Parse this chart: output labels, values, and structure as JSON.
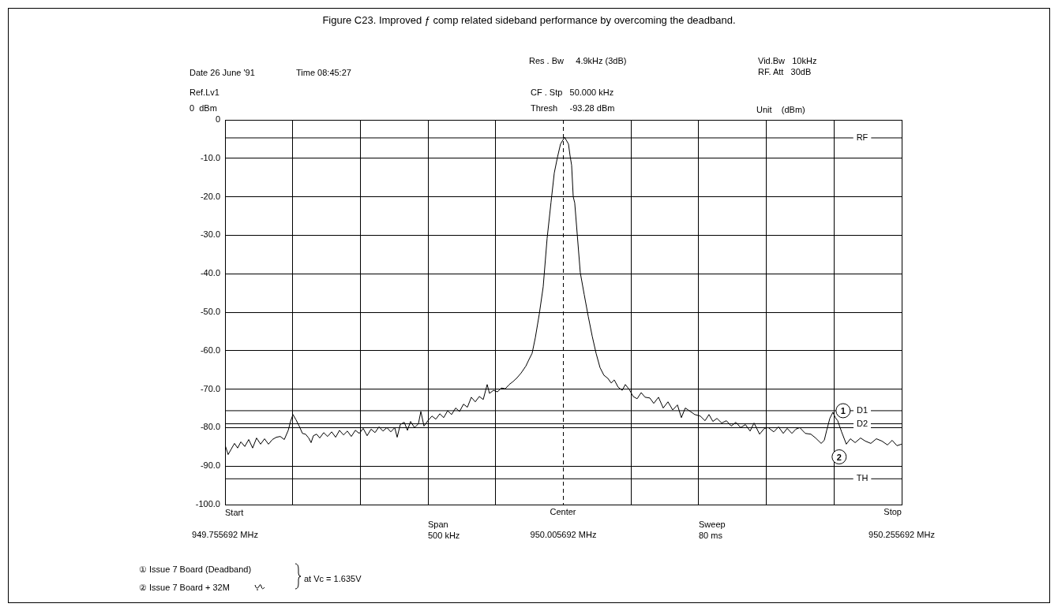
{
  "chart_data": {
    "type": "line",
    "title": "Figure C23. Improved ƒ comp related sideband performance by overcoming the deadband.",
    "annotations": [
      "Date 26 June '91",
      "Time 08:45:27",
      "Res . Bw     4.9kHz (3dB)",
      "Vid.Bw   10kHz",
      "RF. Att   30dB",
      "Ref.Lv1",
      "0  dBm",
      "CF . Stp   50.000 kHz",
      "Thresh     -93.28 dBm",
      "Unit    (dBm)",
      "Span\n500 kHz",
      "Sweep\n80 ms",
      "Start",
      "Center",
      "Stop",
      "① Issue 7 Board (Deadband)",
      "② Issue 7 Board + 32M",
      "at Vc = 1.635V",
      {
        "text": "1",
        "x": 950.2124,
        "y": -75.6
      },
      {
        "text": "2",
        "x": 950.2095,
        "y": -87.6
      }
    ],
    "x": [
      949.7557,
      949.758,
      949.7604,
      949.7627,
      949.765,
      949.7674,
      949.7703,
      949.7732,
      949.7761,
      949.779,
      949.782,
      949.7849,
      949.7878,
      949.7907,
      949.7936,
      949.7965,
      949.7995,
      949.8024,
      949.8041,
      949.8059,
      949.8082,
      949.8105,
      949.8129,
      949.8152,
      949.8175,
      949.8193,
      949.821,
      949.8234,
      949.8257,
      949.8286,
      949.8315,
      949.8345,
      949.8374,
      949.8403,
      949.8432,
      949.8461,
      949.849,
      949.852,
      949.8549,
      949.8578,
      949.8607,
      949.8636,
      949.8665,
      949.8695,
      949.8724,
      949.8753,
      949.8782,
      949.8811,
      949.8829,
      949.8852,
      949.8881,
      949.8905,
      949.8928,
      949.8957,
      949.8986,
      949.9004,
      949.9027,
      949.9056,
      949.9086,
      949.9115,
      949.9144,
      949.9173,
      949.9202,
      949.9231,
      949.9261,
      949.929,
      949.9319,
      949.9348,
      949.9377,
      949.9406,
      949.9436,
      949.9465,
      949.9494,
      949.9511,
      949.9541,
      949.957,
      949.9599,
      949.9628,
      949.9657,
      949.9686,
      949.9716,
      949.9745,
      949.978,
      949.9803,
      949.9826,
      949.985,
      949.9879,
      949.9908,
      949.9937,
      949.9966,
      949.999,
      950.0013,
      950.0036,
      950.0066,
      950.0095,
      950.0106,
      950.0118,
      950.013,
      950.0141,
      950.0159,
      950.0182,
      950.0211,
      950.0241,
      950.027,
      950.0299,
      950.0328,
      950.0357,
      950.0386,
      950.041,
      950.0433,
      950.0462,
      950.0492,
      950.0515,
      950.0544,
      950.0573,
      950.0602,
      950.0632,
      950.0661,
      950.0696,
      950.0725,
      950.076,
      950.0795,
      950.083,
      950.0865,
      950.09,
      950.0929,
      950.0958,
      950.0987,
      950.1028,
      950.1069,
      950.1104,
      950.1133,
      950.1162,
      950.1192,
      950.1227,
      950.1262,
      950.1297,
      950.1332,
      950.1367,
      950.1402,
      950.1437,
      950.1466,
      950.1507,
      950.1542,
      950.1571,
      950.1612,
      950.1647,
      950.1682,
      950.1711,
      950.1746,
      950.1775,
      950.1804,
      950.1845,
      950.1886,
      950.1921,
      950.1962,
      950.1985,
      950.2003,
      950.2026,
      950.2049,
      950.2067,
      950.2084,
      950.2113,
      950.2148,
      950.2178,
      950.2213,
      950.2253,
      950.2288,
      950.2329,
      950.237,
      950.2411,
      950.2452,
      950.2487,
      950.2522,
      950.2556
    ],
    "series": [
      {
        "color": "#000000",
        "values": [
          -84.5,
          -87.0,
          -85.5,
          -84.1,
          -85.3,
          -83.7,
          -84.9,
          -83.1,
          -85.3,
          -82.7,
          -84.3,
          -82.9,
          -84.3,
          -83.1,
          -82.5,
          -82.3,
          -83.1,
          -80.7,
          -78.4,
          -76.6,
          -78.0,
          -79.6,
          -81.5,
          -81.7,
          -82.7,
          -83.9,
          -82.1,
          -81.7,
          -82.7,
          -81.3,
          -82.3,
          -81.1,
          -82.5,
          -80.7,
          -81.9,
          -80.9,
          -82.3,
          -80.7,
          -81.5,
          -80.2,
          -82.1,
          -80.4,
          -81.3,
          -79.8,
          -80.9,
          -80.0,
          -81.1,
          -80.0,
          -82.5,
          -79.2,
          -78.6,
          -80.7,
          -78.4,
          -80.0,
          -79.0,
          -75.8,
          -79.6,
          -78.2,
          -77.0,
          -77.8,
          -76.4,
          -77.4,
          -75.6,
          -76.6,
          -74.9,
          -75.8,
          -73.9,
          -74.7,
          -72.1,
          -73.3,
          -71.9,
          -72.7,
          -68.8,
          -71.1,
          -70.3,
          -70.7,
          -69.7,
          -69.9,
          -68.8,
          -68.0,
          -67.0,
          -65.8,
          -64.0,
          -62.3,
          -60.7,
          -56.6,
          -50.5,
          -43.4,
          -30.8,
          -21.4,
          -13.8,
          -9.8,
          -6.3,
          -4.5,
          -6.3,
          -9.2,
          -11.8,
          -20.0,
          -21.6,
          -29.5,
          -39.7,
          -45.4,
          -51.1,
          -56.2,
          -60.7,
          -64.4,
          -66.4,
          -67.2,
          -68.4,
          -67.6,
          -69.5,
          -70.3,
          -68.8,
          -70.1,
          -71.9,
          -72.5,
          -70.9,
          -72.1,
          -72.3,
          -73.7,
          -72.1,
          -74.9,
          -73.3,
          -75.4,
          -74.1,
          -77.4,
          -74.9,
          -75.6,
          -76.6,
          -77.0,
          -78.2,
          -76.6,
          -78.4,
          -77.6,
          -78.8,
          -78.2,
          -79.6,
          -78.6,
          -80.0,
          -79.2,
          -80.9,
          -78.8,
          -81.7,
          -80.2,
          -80.0,
          -81.1,
          -79.8,
          -81.5,
          -80.2,
          -81.5,
          -80.4,
          -80.0,
          -81.5,
          -81.7,
          -82.7,
          -84.1,
          -83.3,
          -80.7,
          -77.6,
          -76.0,
          -77.4,
          -78.2,
          -81.1,
          -84.3,
          -82.9,
          -83.9,
          -82.7,
          -83.5,
          -84.1,
          -82.9,
          -83.5,
          -84.5,
          -83.3,
          -84.7,
          -84.3
        ]
      }
    ],
    "xlim": [
      949.755692,
      950.255692
    ],
    "xticks": [
      {
        "value": 949.755692,
        "label": "949.755692 MHz"
      },
      {
        "value": 949.805692,
        "label": null
      },
      {
        "value": 949.855692,
        "label": null
      },
      {
        "value": 949.905692,
        "label": null
      },
      {
        "value": 949.955692,
        "label": null
      },
      {
        "value": 950.005692,
        "label": "950.005692 MHz"
      },
      {
        "value": 950.055692,
        "label": null
      },
      {
        "value": 950.105692,
        "label": null
      },
      {
        "value": 950.155692,
        "label": null
      },
      {
        "value": 950.205692,
        "label": null
      },
      {
        "value": 950.255692,
        "label": "950.255692 MHz"
      }
    ],
    "ylim": [
      -100,
      0
    ],
    "yticks": [
      {
        "value": -100,
        "label": "-100.0"
      },
      {
        "value": -90,
        "label": "-90.0"
      },
      {
        "value": -80,
        "label": "-80.0"
      },
      {
        "value": -70,
        "label": "-70.0"
      },
      {
        "value": -60,
        "label": "-60.0"
      },
      {
        "value": -50,
        "label": "-50.0"
      },
      {
        "value": -40,
        "label": "-40.0"
      },
      {
        "value": -30,
        "label": "-30.0"
      },
      {
        "value": -20,
        "label": "-20.0"
      },
      {
        "value": -10,
        "label": "-10.0"
      },
      0
    ],
    "ref_lines": [
      {
        "axis": "y",
        "value": -4.7,
        "label": "RF"
      },
      {
        "axis": "y",
        "value": -75.6,
        "label": "D1"
      },
      {
        "axis": "y",
        "value": -79.0,
        "label": "D2"
      },
      {
        "axis": "y",
        "value": -93.3,
        "label": "TH"
      },
      {
        "axis": "x",
        "value": 950.005692,
        "label": null,
        "line_style": "dashed"
      }
    ],
    "grid": true,
    "legend": false,
    "marker": "none",
    "line_style": "solid"
  }
}
